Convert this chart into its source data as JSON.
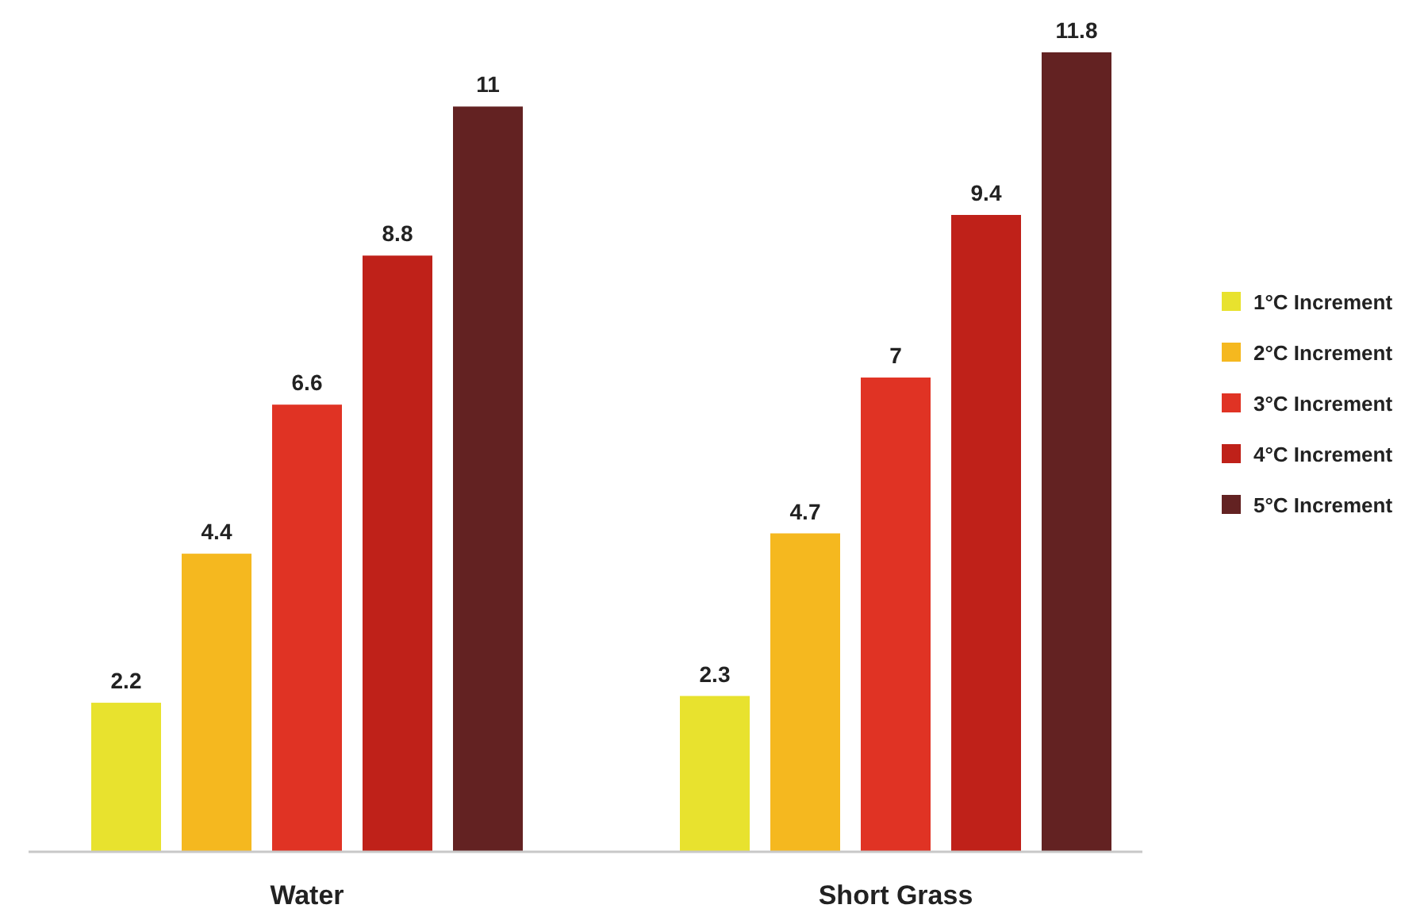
{
  "chart_data": {
    "type": "bar",
    "categories": [
      "Water",
      "Short Grass"
    ],
    "series": [
      {
        "name": "1°C Increment",
        "color": "#e8e22e",
        "values": [
          2.2,
          2.3
        ]
      },
      {
        "name": "2°C Increment",
        "color": "#f5b81f",
        "values": [
          4.4,
          4.7
        ]
      },
      {
        "name": "3°C Increment",
        "color": "#e03324",
        "values": [
          6.6,
          7
        ]
      },
      {
        "name": "4°C Increment",
        "color": "#bf2119",
        "values": [
          8.8,
          9.4
        ]
      },
      {
        "name": "5°C Increment",
        "color": "#632222",
        "values": [
          11,
          11.8
        ]
      }
    ],
    "data_labels": true,
    "legend": "right"
  }
}
